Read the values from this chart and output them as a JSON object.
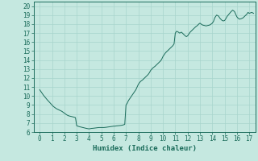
{
  "title": "",
  "xlabel": "Humidex (Indice chaleur)",
  "ylabel": "",
  "xlim": [
    -0.5,
    17.5
  ],
  "ylim": [
    6,
    20.5
  ],
  "xticks": [
    0,
    1,
    2,
    3,
    4,
    5,
    6,
    7,
    8,
    9,
    10,
    11,
    12,
    13,
    14,
    15,
    16,
    17
  ],
  "yticks": [
    6,
    7,
    8,
    9,
    10,
    11,
    12,
    13,
    14,
    15,
    16,
    17,
    18,
    19,
    20
  ],
  "background_color": "#c5e8e0",
  "line_color": "#1a6b5a",
  "grid_color": "#a8d5cc",
  "x": [
    0.0,
    0.15,
    0.3,
    0.45,
    0.6,
    0.7,
    0.8,
    0.9,
    1.0,
    1.1,
    1.2,
    1.35,
    1.5,
    1.65,
    1.8,
    1.9,
    2.0,
    2.1,
    2.2,
    2.35,
    2.5,
    2.65,
    2.8,
    2.9,
    3.0,
    3.1,
    3.2,
    3.35,
    3.5,
    3.65,
    3.8,
    3.9,
    4.0,
    4.1,
    4.2,
    4.35,
    4.5,
    4.65,
    4.8,
    4.9,
    5.0,
    5.1,
    5.2,
    5.35,
    5.5,
    5.65,
    5.8,
    5.9,
    6.0,
    6.1,
    6.2,
    6.35,
    6.5,
    6.65,
    6.8,
    6.9,
    7.0,
    7.1,
    7.2,
    7.35,
    7.5,
    7.65,
    7.8,
    7.9,
    8.0,
    8.1,
    8.2,
    8.35,
    8.5,
    8.65,
    8.8,
    8.9,
    9.0,
    9.1,
    9.2,
    9.35,
    9.5,
    9.65,
    9.8,
    9.9,
    10.0,
    10.1,
    10.2,
    10.35,
    10.5,
    10.65,
    10.8,
    10.9,
    11.0,
    11.1,
    11.2,
    11.35,
    11.5,
    11.65,
    11.8,
    11.9,
    12.0,
    12.1,
    12.2,
    12.35,
    12.5,
    12.65,
    12.8,
    12.9,
    13.0,
    13.1,
    13.2,
    13.35,
    13.5,
    13.65,
    13.8,
    13.9,
    14.0,
    14.1,
    14.2,
    14.35,
    14.5,
    14.65,
    14.8,
    14.9,
    15.0,
    15.1,
    15.2,
    15.35,
    15.5,
    15.65,
    15.8,
    15.9,
    16.0,
    16.1,
    16.2,
    16.35,
    16.5,
    16.65,
    16.8,
    16.9,
    17.0,
    17.1,
    17.2,
    17.35
  ],
  "y": [
    10.7,
    10.4,
    10.1,
    9.85,
    9.6,
    9.45,
    9.3,
    9.15,
    9.0,
    8.85,
    8.75,
    8.6,
    8.5,
    8.4,
    8.3,
    8.2,
    8.1,
    8.0,
    7.9,
    7.8,
    7.75,
    7.7,
    7.65,
    7.6,
    6.7,
    6.65,
    6.6,
    6.55,
    6.5,
    6.45,
    6.4,
    6.38,
    6.35,
    6.38,
    6.4,
    6.42,
    6.45,
    6.48,
    6.5,
    6.5,
    6.5,
    6.5,
    6.5,
    6.52,
    6.55,
    6.58,
    6.6,
    6.62,
    6.65,
    6.65,
    6.68,
    6.7,
    6.72,
    6.75,
    6.8,
    6.85,
    9.0,
    9.2,
    9.5,
    9.8,
    10.1,
    10.4,
    10.7,
    11.0,
    11.3,
    11.5,
    11.65,
    11.8,
    12.0,
    12.2,
    12.4,
    12.6,
    12.85,
    13.0,
    13.15,
    13.3,
    13.5,
    13.7,
    13.9,
    14.1,
    14.4,
    14.6,
    14.8,
    15.0,
    15.2,
    15.4,
    15.6,
    15.8,
    17.0,
    17.2,
    17.15,
    17.0,
    17.1,
    16.9,
    16.7,
    16.6,
    16.7,
    16.9,
    17.1,
    17.3,
    17.5,
    17.7,
    17.85,
    18.0,
    18.1,
    18.0,
    17.9,
    17.85,
    17.8,
    17.85,
    17.9,
    18.0,
    18.1,
    18.3,
    18.7,
    19.0,
    18.9,
    18.6,
    18.4,
    18.35,
    18.4,
    18.6,
    18.85,
    19.1,
    19.35,
    19.55,
    19.4,
    19.1,
    18.8,
    18.65,
    18.55,
    18.6,
    18.7,
    18.9,
    19.1,
    19.3,
    19.2,
    19.25,
    19.3,
    19.2
  ]
}
